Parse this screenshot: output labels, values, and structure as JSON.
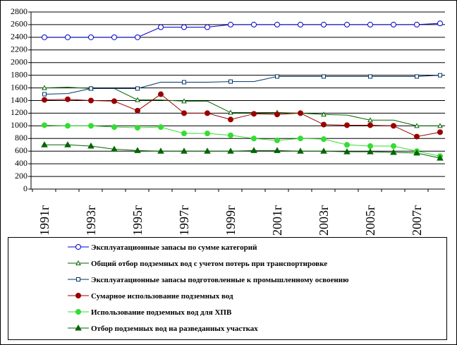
{
  "chart_data": {
    "type": "line",
    "y_ticks": [
      "0",
      "200",
      "400",
      "600",
      "800",
      "1000",
      "1200",
      "1400",
      "1600",
      "1800",
      "2000",
      "2200",
      "2400",
      "2600",
      "2800"
    ],
    "ylim": [
      0,
      2800
    ],
    "x": [
      1991,
      1992,
      1993,
      1994,
      1995,
      1996,
      1997,
      1998,
      1999,
      2000,
      2001,
      2002,
      2003,
      2004,
      2005,
      2006,
      2007,
      2008
    ],
    "x_tick_labels": [
      "1991г",
      "1993г",
      "1995г",
      "1997г",
      "1999г",
      "2001г",
      "2003г",
      "2005г",
      "2007г"
    ],
    "x_tick_years": [
      1991,
      1993,
      1995,
      1997,
      1999,
      2001,
      2003,
      2005,
      2007
    ],
    "grid": true,
    "series": [
      {
        "name": "Эксплуатационные запасы по сумме категорий",
        "color": "#0000CC",
        "marker": "circle-open",
        "values": [
          2400,
          2400,
          2400,
          2400,
          2400,
          2560,
          2560,
          2560,
          2600,
          2600,
          2600,
          2600,
          2600,
          2600,
          2600,
          2600,
          2600,
          2620
        ]
      },
      {
        "name": "Общий отбор подземных вод с учетом потерь при транспортировке",
        "color": "#006600",
        "marker": "triangle-open",
        "values": [
          1600,
          1610,
          1590,
          1590,
          1410,
          1410,
          1390,
          1390,
          1210,
          1210,
          1210,
          1200,
          1180,
          1170,
          1090,
          1090,
          1000,
          1000
        ]
      },
      {
        "name": "Эксплуатационные запасы подготовленные к промышленному освоению",
        "color": "#003366",
        "marker": "square-open",
        "values": [
          1500,
          1510,
          1590,
          1590,
          1590,
          1690,
          1690,
          1690,
          1700,
          1700,
          1780,
          1780,
          1780,
          1780,
          1780,
          1780,
          1780,
          1800
        ]
      },
      {
        "name": "Сумарное использование подземных вод",
        "color": "#990000",
        "marker": "circle-filled",
        "values": [
          1410,
          1420,
          1400,
          1390,
          1240,
          1500,
          1200,
          1200,
          1100,
          1190,
          1180,
          1200,
          1020,
          1010,
          1010,
          1000,
          830,
          900
        ]
      },
      {
        "name": "Использование подземных вод для ХПВ",
        "color": "#33DD33",
        "marker": "circle-filled",
        "values": [
          1010,
          1000,
          1000,
          980,
          970,
          980,
          880,
          880,
          850,
          800,
          770,
          800,
          790,
          700,
          680,
          680,
          600,
          520
        ]
      },
      {
        "name": "Отбор подземных вод на разведанных участках",
        "color": "#006600",
        "marker": "triangle-filled",
        "values": [
          700,
          700,
          680,
          630,
          610,
          600,
          600,
          600,
          600,
          610,
          610,
          600,
          600,
          590,
          590,
          580,
          570,
          490
        ]
      }
    ]
  }
}
